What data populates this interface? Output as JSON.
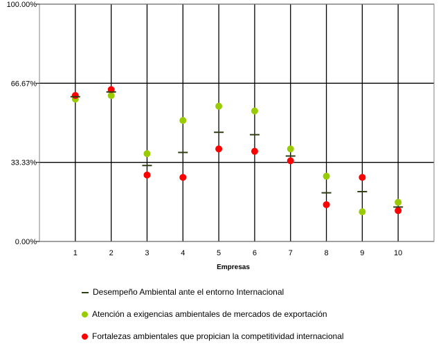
{
  "chart_data": {
    "type": "scatter",
    "xlabel": "Empresas",
    "ylabel": "",
    "categories": [
      "1",
      "2",
      "3",
      "4",
      "5",
      "6",
      "7",
      "8",
      "9",
      "10"
    ],
    "ylim": [
      0,
      100
    ],
    "yticks": [
      "0.00%",
      "33.33%",
      "66.67%",
      "100.00%"
    ],
    "ytick_values": [
      0,
      33.33,
      66.67,
      100
    ],
    "grid": true,
    "legend_position": "bottom",
    "series": [
      {
        "name": "Desempeño Ambiental ante el entorno Internacional",
        "marker": "dash",
        "color": "#2f3d14",
        "values": [
          61,
          63,
          32,
          37.5,
          46,
          45,
          36,
          20.5,
          21,
          14.5
        ]
      },
      {
        "name": "Atención a exigencias ambientales de mercados de exportación",
        "marker": "circle",
        "color": "#99cc00",
        "values": [
          60,
          61.5,
          37,
          51,
          57,
          55,
          39,
          27.5,
          12.5,
          16.5
        ]
      },
      {
        "name": "Fortalezas ambientales que propician la competitividad internacional",
        "marker": "circle",
        "color": "#ff0000",
        "values": [
          61.5,
          64,
          28,
          27,
          39,
          38,
          34,
          15.5,
          27,
          13
        ]
      }
    ]
  }
}
